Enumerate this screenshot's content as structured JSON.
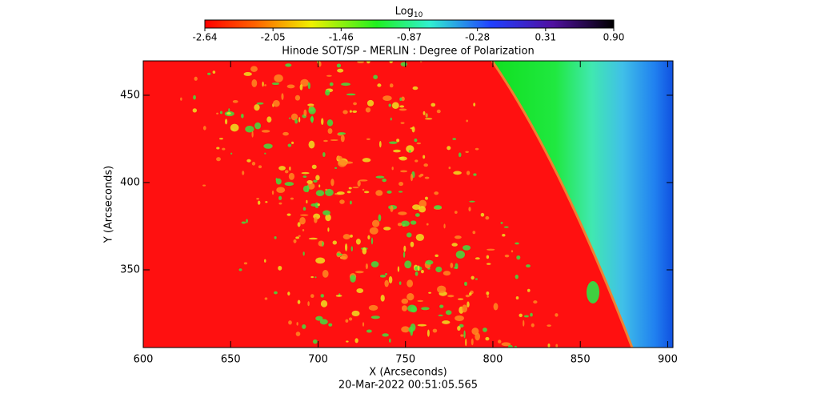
{
  "chart_data": {
    "type": "image",
    "title": "Hinode SOT/SP - MERLIN : Degree of Polarization",
    "x_label": "X (Arcseconds)",
    "y_label": "Y (Arcseconds)",
    "footer": "20-Mar-2022 00:51:05.565",
    "xlim": [
      600,
      903
    ],
    "xticks": [
      600,
      650,
      700,
      750,
      800,
      850,
      900
    ],
    "ylim": [
      305.5,
      469.7
    ],
    "yticks": [
      350,
      400,
      450
    ],
    "colorbar": {
      "label": "Log",
      "label_sub": "10",
      "lim": [
        -2.64,
        0.9
      ],
      "ticks": [
        -2.64,
        -2.05,
        -1.46,
        -0.87,
        -0.28,
        0.31,
        {
          "value": 0.9,
          "label": "0.90"
        }
      ]
    }
  }
}
